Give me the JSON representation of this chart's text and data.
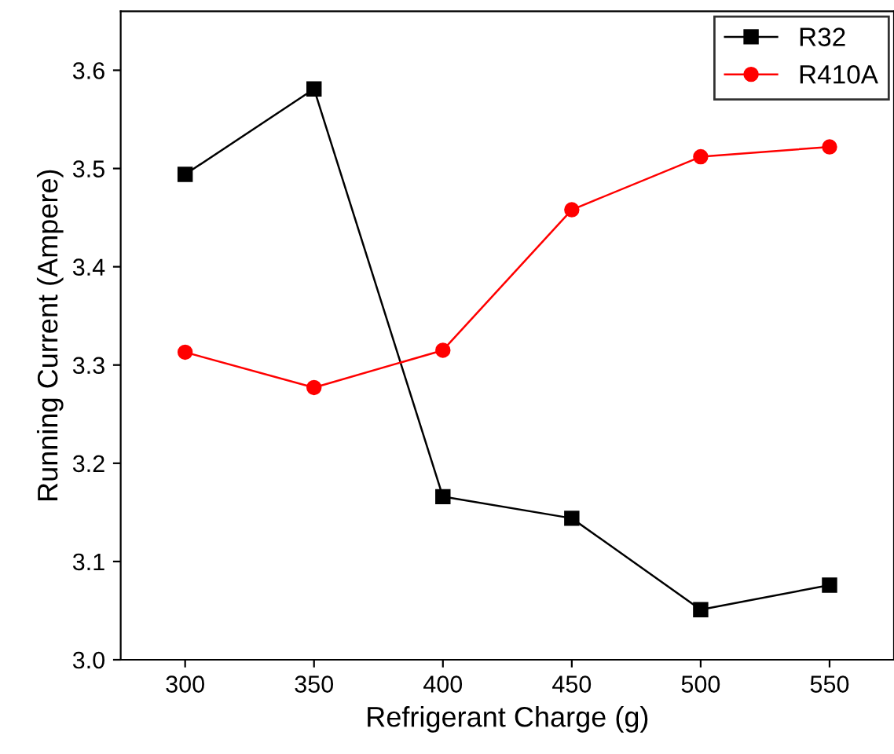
{
  "chart_data": {
    "type": "line",
    "xlabel": "Refrigerant Charge (g)",
    "ylabel": "Running Current (Ampere)",
    "x": [
      300,
      350,
      400,
      450,
      500,
      550
    ],
    "series": [
      {
        "name": "R32",
        "color": "#000000",
        "marker": "square",
        "values": [
          3.494,
          3.581,
          3.166,
          3.144,
          3.051,
          3.076
        ]
      },
      {
        "name": "R410A",
        "color": "#ff0000",
        "marker": "circle",
        "values": [
          3.313,
          3.277,
          3.315,
          3.458,
          3.512,
          3.522
        ]
      }
    ],
    "xlim": [
      275,
      575
    ],
    "xticks": [
      300,
      350,
      400,
      450,
      500,
      550
    ],
    "ylim": [
      3.0,
      3.66
    ],
    "yticks": [
      {
        "value": 3.0,
        "label": "3.0"
      },
      3.1,
      3.2,
      3.3,
      3.4,
      3.5,
      3.6
    ],
    "grid": false,
    "legend": "top right",
    "line_style": "solid"
  }
}
